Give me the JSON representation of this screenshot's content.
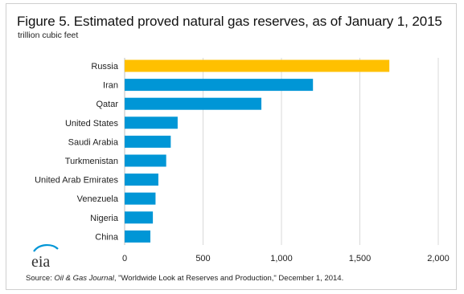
{
  "header": {
    "title": "Figure 5. Estimated proved natural  gas reserves, as of January  1, 2015",
    "subtitle": "trillion cubic feet"
  },
  "source": {
    "prefix": "Source:  ",
    "journal": "Oil & Gas Journal",
    "rest": ", \"Worldwide Look at Reserves  and Production,\" December  1, 2014."
  },
  "logo": {
    "text": "eia"
  },
  "colors": {
    "highlight": "#FFC000",
    "bar": "#0096D6",
    "grid": "#d9d9d9",
    "logo_swoosh": "#0096D6"
  },
  "chart_data": {
    "type": "bar",
    "orientation": "horizontal",
    "categories": [
      "Russia",
      "Iran",
      "Qatar",
      "United States",
      "Saudi Arabia",
      "Turkmenistan",
      "United Arab Emirates",
      "Venezuela",
      "Nigeria",
      "China"
    ],
    "values": [
      1688,
      1201,
      872,
      338,
      294,
      265,
      215,
      197,
      180,
      164
    ],
    "highlight_index": 0,
    "xlim": [
      0,
      2000
    ],
    "xticks": [
      0,
      500,
      1000,
      1500,
      2000
    ],
    "xtick_labels": [
      "0",
      "500",
      "1,000",
      "1,500",
      "2,000"
    ],
    "grid": "vertical"
  }
}
